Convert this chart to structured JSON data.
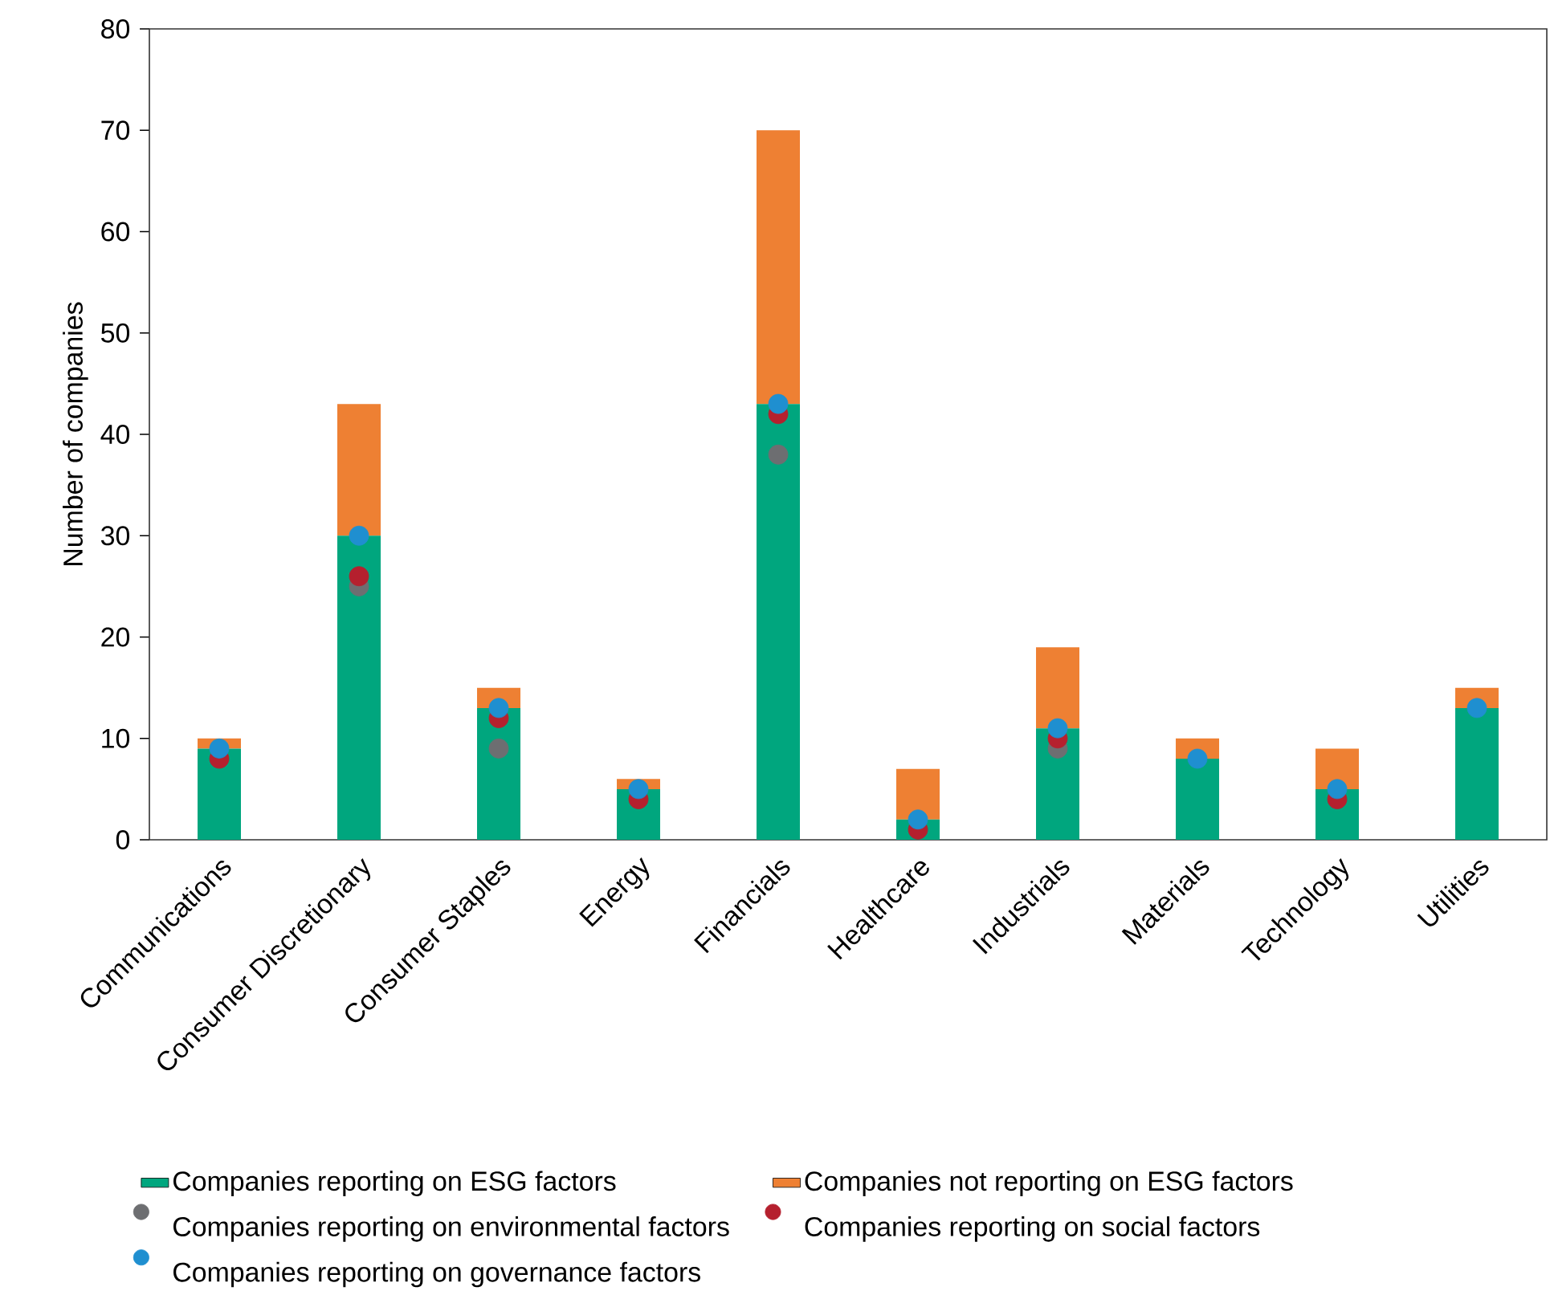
{
  "chart_data": {
    "type": "bar",
    "stacked": true,
    "ylabel": "Number of companies",
    "categories": [
      "Communications",
      "Consumer Discretionary",
      "Consumer Staples",
      "Energy",
      "Financials",
      "Healthcare",
      "Industrials",
      "Materials",
      "Technology",
      "Utilities"
    ],
    "series": [
      {
        "name": "Companies reporting on ESG factors",
        "type": "bar",
        "color": "#00a67e",
        "values": [
          9,
          30,
          13,
          5,
          43,
          2,
          11,
          8,
          5,
          13
        ]
      },
      {
        "name": "Companies not reporting on ESG factors",
        "type": "bar",
        "color": "#ee8033",
        "values": [
          1,
          13,
          2,
          1,
          27,
          5,
          8,
          2,
          4,
          2
        ]
      },
      {
        "name": "Companies reporting on environmental factors",
        "type": "scatter",
        "color": "#6d6e71",
        "values": [
          null,
          25,
          9,
          null,
          38,
          null,
          9,
          null,
          null,
          null
        ]
      },
      {
        "name": "Companies reporting on social factors",
        "type": "scatter",
        "color": "#b5202e",
        "values": [
          8,
          26,
          12,
          4,
          42,
          1,
          10,
          null,
          4,
          null
        ]
      },
      {
        "name": "Companies reporting on governance factors",
        "type": "scatter",
        "color": "#1f8fd0",
        "values": [
          9,
          30,
          13,
          5,
          43,
          2,
          11,
          8,
          5,
          13
        ]
      }
    ],
    "marker": "circle",
    "legend": "bottom",
    "ylim": [
      0,
      80
    ],
    "yticks": [
      0,
      10,
      20,
      30,
      40,
      50,
      60,
      70,
      80
    ]
  }
}
